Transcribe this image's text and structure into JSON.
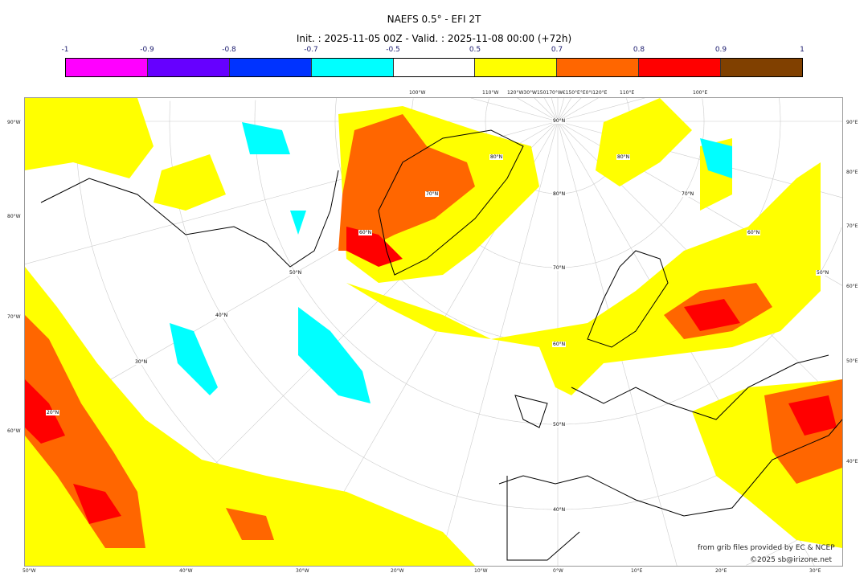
{
  "title": "NAEFS 0.5° - EFI 2T",
  "subtitle": "Init. : 2025-11-05 00Z - Valid. : 2025-11-08 00:00 (+72h)",
  "colorbar": {
    "ticks": [
      "-1",
      "-0.9",
      "-0.8",
      "-0.7",
      "-0.5",
      "0.5",
      "0.7",
      "0.8",
      "0.9",
      "1"
    ],
    "colors": [
      "#ff00ff",
      "#6600ff",
      "#0033ff",
      "#00ffff",
      "#ffffff",
      "#ffff00",
      "#ff6600",
      "#ff0000",
      "#804000"
    ]
  },
  "axes": {
    "left": [
      "90°W",
      "80°W",
      "70°W",
      "60°W"
    ],
    "right": [
      "90°E",
      "80°E",
      "70°E",
      "60°E",
      "50°E",
      "40°E"
    ],
    "bottom": [
      "50°W",
      "40°W",
      "30°W",
      "20°W",
      "10°W",
      "0°W",
      "10°E",
      "20°E",
      "30°E"
    ],
    "top": [
      "100°W",
      "110°W",
      "120°W30°W150170°W€150°E°E0°I120°E",
      "110°E",
      "100°E"
    ]
  },
  "lat_labels": [
    "90°N",
    "80°N",
    "70°N",
    "60°N",
    "50°N",
    "40°N",
    "80°N",
    "70°N",
    "60°N",
    "50°N",
    "50°N",
    "40°N",
    "30°N",
    "20°N",
    "70°N",
    "60°N",
    "80°N"
  ],
  "credits": {
    "source": "from grib files provided by EC & NCEP",
    "copyright": "©2025 sb@irizone.net"
  }
}
